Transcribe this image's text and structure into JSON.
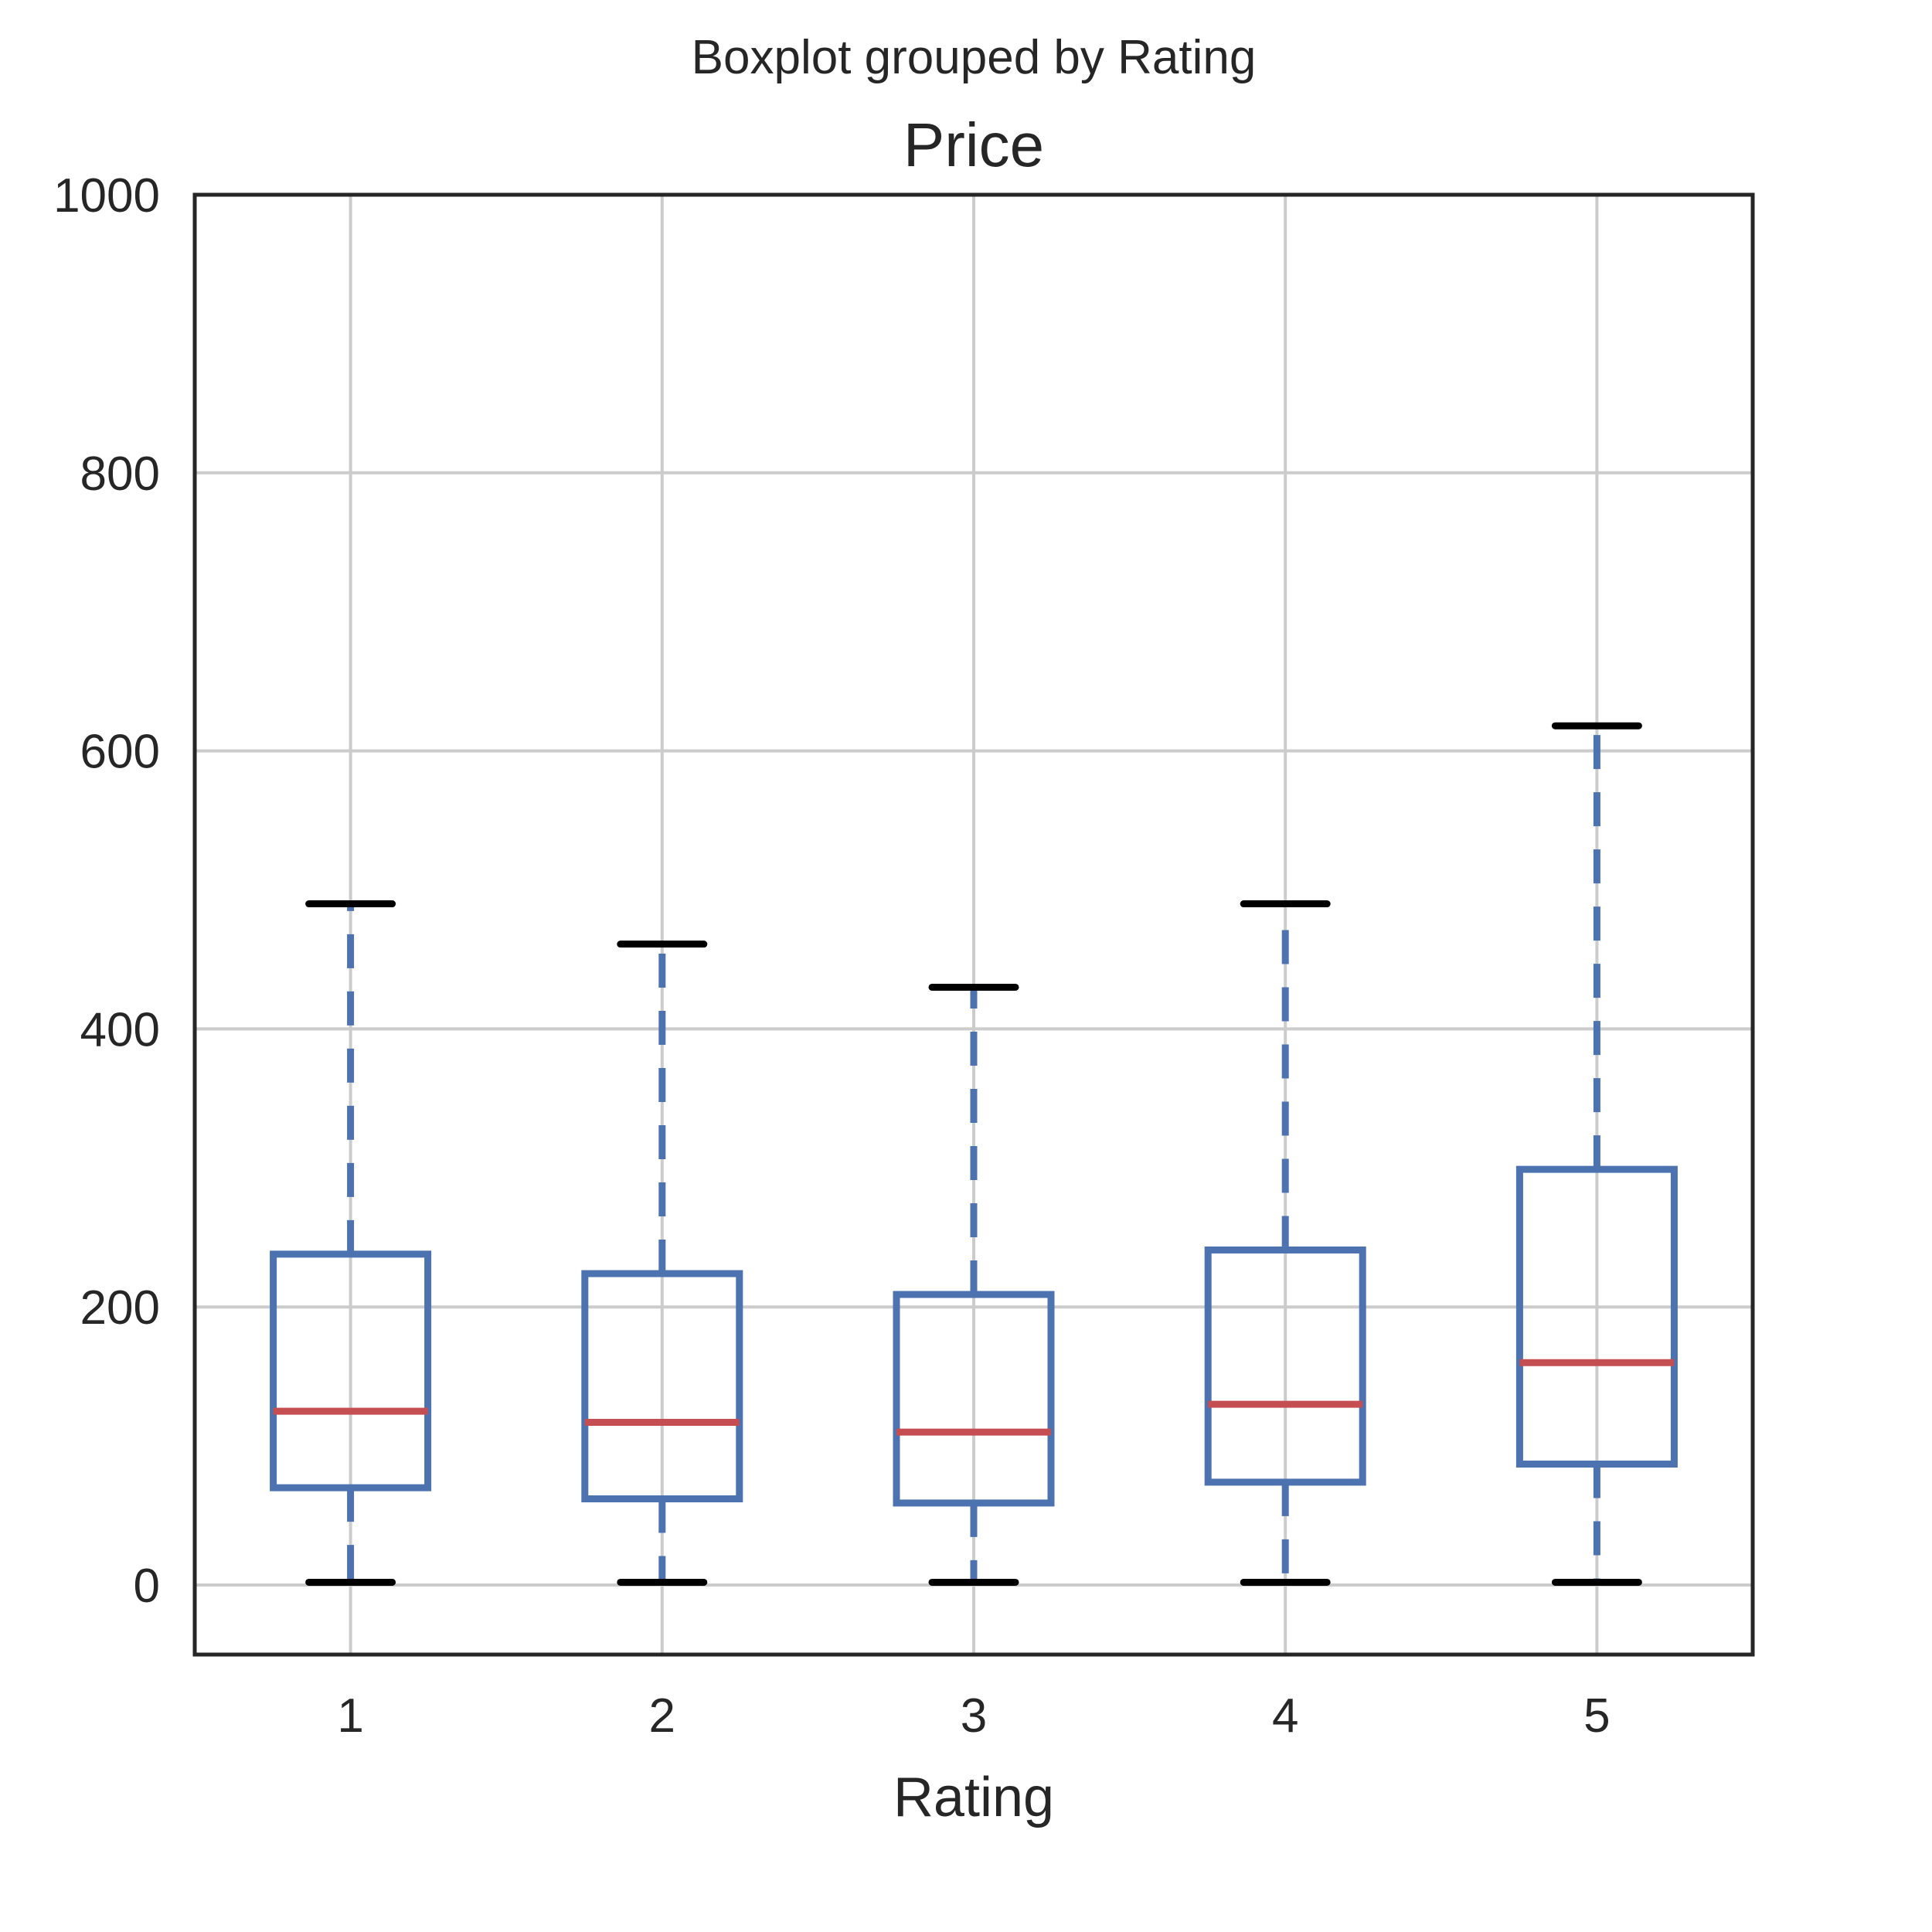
{
  "chart_data": {
    "type": "box",
    "suptitle": "Boxplot grouped by Rating",
    "title": "Price",
    "xlabel": "Rating",
    "ylabel": "",
    "ylim": [
      -50,
      1000
    ],
    "yticks": [
      0,
      200,
      400,
      600,
      800,
      1000
    ],
    "grid": true,
    "legend": "none",
    "categories": [
      "1",
      "2",
      "3",
      "4",
      "5"
    ],
    "boxes": [
      {
        "category": "1",
        "whisker_low": 2,
        "q1": 70,
        "median": 125,
        "q3": 238,
        "whisker_high": 490
      },
      {
        "category": "2",
        "whisker_low": 2,
        "q1": 62,
        "median": 117,
        "q3": 224,
        "whisker_high": 461
      },
      {
        "category": "3",
        "whisker_low": 2,
        "q1": 59,
        "median": 110,
        "q3": 209,
        "whisker_high": 430
      },
      {
        "category": "4",
        "whisker_low": 2,
        "q1": 74,
        "median": 130,
        "q3": 241,
        "whisker_high": 490
      },
      {
        "category": "5",
        "whisker_low": 2,
        "q1": 87,
        "median": 160,
        "q3": 299,
        "whisker_high": 618
      }
    ],
    "colors": {
      "box": "#4c72b0",
      "median": "#c44e52",
      "cap": "#000000",
      "grid": "#cccccc",
      "frame": "#262626",
      "text": "#262626"
    }
  }
}
